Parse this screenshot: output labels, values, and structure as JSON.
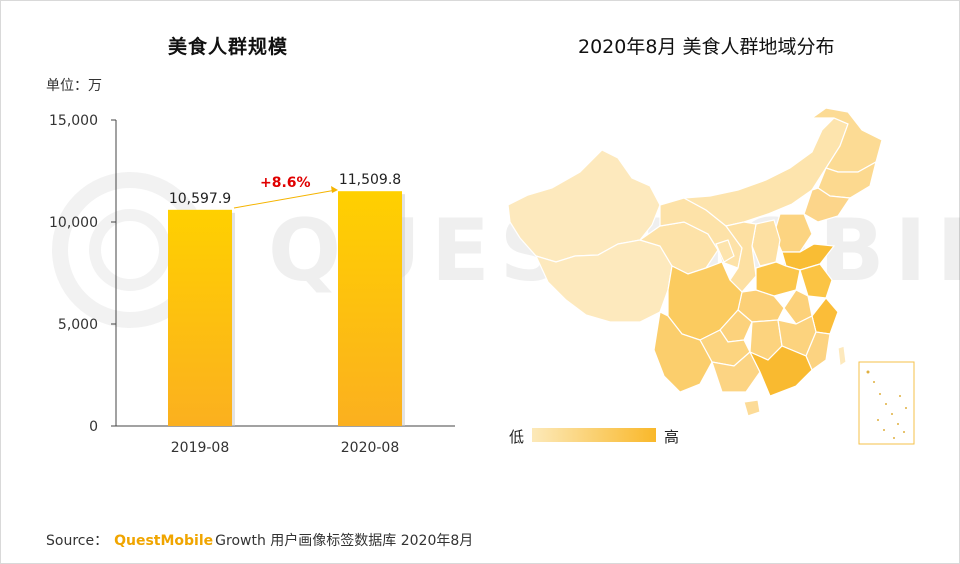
{
  "bar_chart": {
    "title": "美食人群规模",
    "unit_label": "单位：万",
    "growth_label": "+8.6%"
  },
  "map_chart": {
    "title": "2020年8月 美食人群地域分布",
    "legend_low": "低",
    "legend_high": "高",
    "colors": {
      "low": "#fce9b9",
      "high": "#f9b82a"
    }
  },
  "source": {
    "prefix": "Source：",
    "brand": "QuestMobile",
    "rest": "Growth 用户画像标签数据库 2020年8月"
  },
  "watermark": "QUESTMOBILE",
  "chart_data": [
    {
      "type": "bar",
      "title": "美食人群规模",
      "categories": [
        "2019-08",
        "2020-08"
      ],
      "values": [
        10597.9,
        11509.8
      ],
      "value_labels": [
        "10,597.9",
        "11,509.8"
      ],
      "yticks": [
        0,
        5000,
        10000,
        15000
      ],
      "ytick_labels": [
        "0",
        "5,000",
        "10,000",
        "15,000"
      ],
      "ylim": [
        0,
        15000
      ],
      "xlabel": "",
      "ylabel": "",
      "colors": {
        "top": "#ffd000",
        "bottom": "#fbb01f"
      }
    }
  ]
}
